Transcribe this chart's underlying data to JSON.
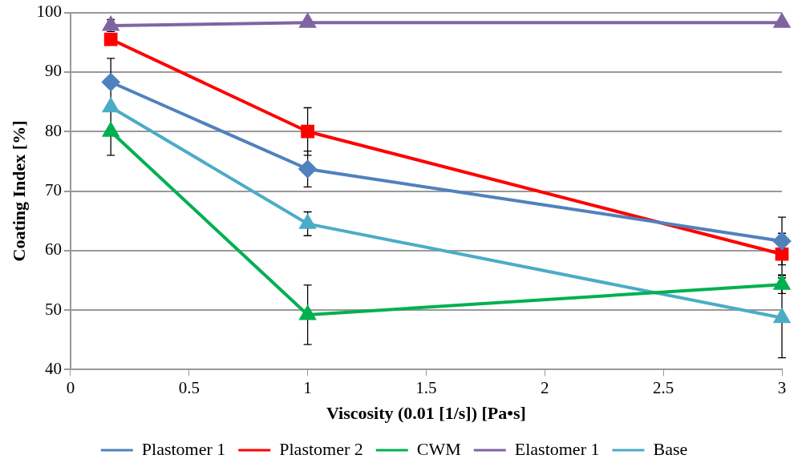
{
  "chart_data": {
    "type": "line",
    "xlabel": "Viscosity (0.01 [1/s]) [Pa•s]",
    "ylabel": "Coating Index [%]",
    "x": [
      0.17,
      1,
      3
    ],
    "xlim": [
      0,
      3
    ],
    "xticks": [
      0,
      0.5,
      1,
      1.5,
      2,
      2.5,
      3
    ],
    "ylim": [
      40,
      100
    ],
    "yticks": [
      40,
      50,
      60,
      70,
      80,
      90,
      100
    ],
    "grid": "y",
    "legend": "bottom",
    "series": [
      {
        "name": "Plastomer 1",
        "color": "#4f81bd",
        "marker": "diamond",
        "values": [
          88.3,
          73.7,
          61.6
        ],
        "errors": [
          4,
          3,
          4
        ]
      },
      {
        "name": "Plastomer 2",
        "color": "#ff0000",
        "marker": "square",
        "values": [
          95.5,
          80,
          59.4
        ],
        "errors": [
          null,
          4,
          3.5
        ]
      },
      {
        "name": "CWM",
        "color": "#00b050",
        "marker": "triangle",
        "values": [
          80,
          49.2,
          54.3
        ],
        "errors": [
          4,
          5,
          1.5
        ]
      },
      {
        "name": "Elastomer 1",
        "color": "#8064a2",
        "marker": "triangle",
        "values": [
          97.8,
          98.3,
          98.3
        ],
        "errors": [
          1,
          null,
          null
        ]
      },
      {
        "name": "Base",
        "color": "#4bacc6",
        "marker": "triangle",
        "values": [
          84.1,
          64.5,
          48.7
        ],
        "errors": [
          null,
          2,
          6.7
        ]
      }
    ]
  }
}
